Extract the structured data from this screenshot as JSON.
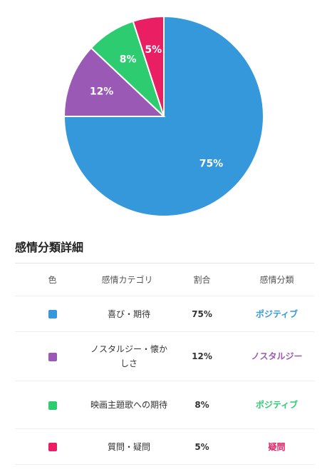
{
  "chart_data": {
    "type": "pie",
    "slices": [
      {
        "label": "喜び・期待",
        "value": 75,
        "display": "75%",
        "color": "#3498db"
      },
      {
        "label": "ノスタルジー・懐かしさ",
        "value": 12,
        "display": "12%",
        "color": "#9b59b6"
      },
      {
        "label": "映画主題歌への期待",
        "value": 8,
        "display": "8%",
        "color": "#2ecc71"
      },
      {
        "label": "質問・疑問",
        "value": 5,
        "display": "5%",
        "color": "#e91e63"
      }
    ]
  },
  "section_title": "感情分類詳細",
  "table": {
    "headers": [
      "色",
      "感情カテゴリ",
      "割合",
      "感情分類"
    ],
    "rows": [
      {
        "category": "喜び・期待",
        "percent": "75%",
        "classification": "ポジティブ",
        "color": "#3498db"
      },
      {
        "category": "ノスタルジー・懐かしさ",
        "percent": "12%",
        "classification": "ノスタルジー",
        "color": "#9b59b6"
      },
      {
        "category": "映画主題歌への期待",
        "percent": "8%",
        "classification": "ポジティブ",
        "color": "#2ecc71"
      },
      {
        "category": "質問・疑問",
        "percent": "5%",
        "classification": "疑問",
        "color": "#e91e63"
      }
    ]
  }
}
